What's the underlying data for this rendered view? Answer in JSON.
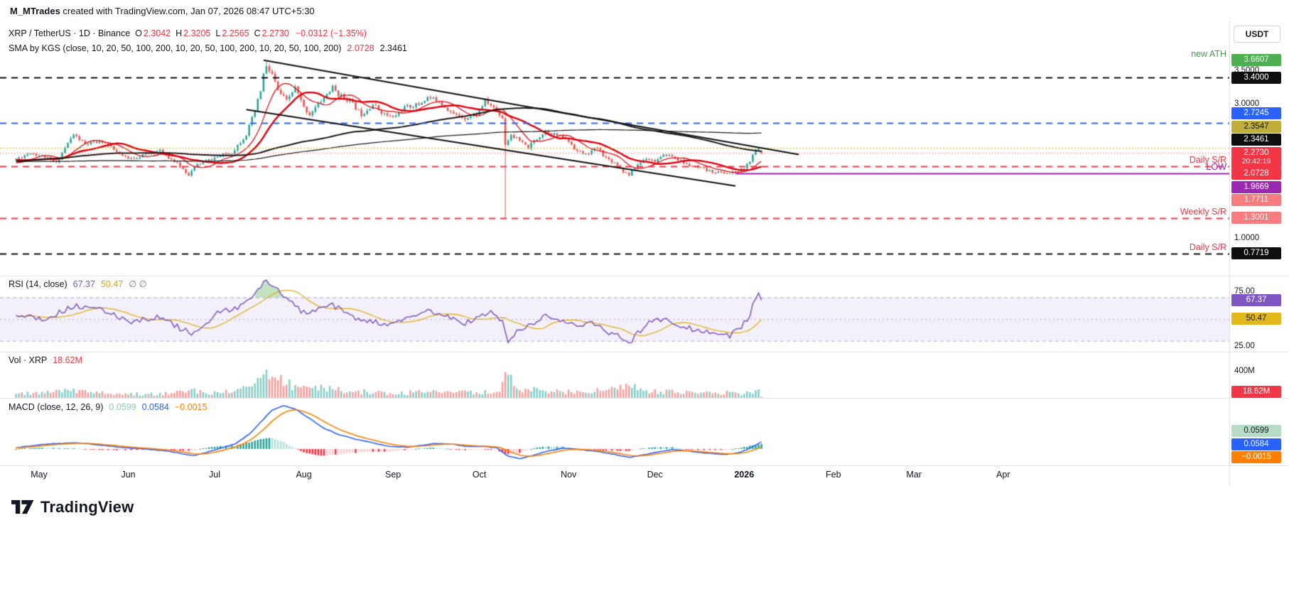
{
  "watermark": {
    "author": "M_MTrades",
    "rest": " created with TradingView.com, Jan 07, 2026 08:47 UTC+5:30"
  },
  "toolbar": {
    "currency_button": "USDT"
  },
  "legend": {
    "symbol_text": "XRP / TetherUS · 1D · Binance",
    "ohlc": [
      {
        "k": "O",
        "v": "2.3042"
      },
      {
        "k": "H",
        "v": "2.3205"
      },
      {
        "k": "L",
        "v": "2.2565"
      },
      {
        "k": "C",
        "v": "2.2730"
      }
    ],
    "change": "−0.0312 (−1.35%)",
    "sma_text": "SMA by KGS (close, 10, 20, 50, 100, 200, 10, 20, 50, 100, 200, 10, 20, 50, 100, 200)",
    "sma_values": [
      {
        "text": "2.0728",
        "color": "#f23645"
      },
      {
        "text": "2.3461",
        "color": "#131722"
      }
    ]
  },
  "pane_legends": {
    "rsi_title": "RSI (14, close)",
    "rsi_values": [
      {
        "text": "67.37",
        "color": "#7e57c2"
      },
      {
        "text": "50.47",
        "color": "#d8a80b"
      }
    ],
    "rsi_empty": "∅  ∅",
    "vol_title": "Vol · XRP",
    "vol_value": {
      "text": "18.62M",
      "color": "#f23645"
    },
    "macd_title": "MACD (close, 12, 26, 9)",
    "macd_values": [
      {
        "text": "0.0599",
        "color": "#8fc9b8"
      },
      {
        "text": "0.0584",
        "color": "#2962ff"
      },
      {
        "text": "−0.0015",
        "color": "#ff8000"
      }
    ]
  },
  "footer": {
    "logo_text": "TradingView"
  },
  "chart_data": {
    "type": "candlestick",
    "symbol": "XRP/USDT",
    "exchange": "Binance",
    "interval": "1D",
    "x_axis": {
      "days_total": 260,
      "months": [
        {
          "label": "May",
          "day": 8
        },
        {
          "label": "Jun",
          "day": 39
        },
        {
          "label": "Jul",
          "day": 69
        },
        {
          "label": "Aug",
          "day": 100
        },
        {
          "label": "Sep",
          "day": 131
        },
        {
          "label": "Oct",
          "day": 161
        },
        {
          "label": "Nov",
          "day": 192
        },
        {
          "label": "Dec",
          "day": 222
        },
        {
          "label": "2026",
          "day": 253,
          "bold": true
        },
        {
          "label": "Feb",
          "day": 284
        },
        {
          "label": "Mar",
          "day": 312
        },
        {
          "label": "Apr",
          "day": 343
        }
      ]
    },
    "price": {
      "ylim": [
        0.44,
        4.24
      ],
      "last": {
        "open": 2.3042,
        "high": 2.3205,
        "low": 2.2565,
        "close": 2.273
      },
      "countdown": "20:42:19",
      "ticks": [
        {
          "v": 3.5,
          "t": "3.5000"
        },
        {
          "v": 3.0,
          "t": "3.0000"
        },
        {
          "v": 1.0,
          "t": "1.0000"
        }
      ],
      "close_keyframes": [
        [
          0,
          2.18
        ],
        [
          5,
          2.28
        ],
        [
          10,
          2.21
        ],
        [
          14,
          2.12
        ],
        [
          17,
          2.35
        ],
        [
          20,
          2.55
        ],
        [
          24,
          2.4
        ],
        [
          30,
          2.45
        ],
        [
          36,
          2.25
        ],
        [
          39,
          2.18
        ],
        [
          45,
          2.25
        ],
        [
          50,
          2.3
        ],
        [
          55,
          2.15
        ],
        [
          60,
          1.95
        ],
        [
          63,
          2.1
        ],
        [
          69,
          2.2
        ],
        [
          75,
          2.28
        ],
        [
          80,
          2.55
        ],
        [
          83,
          2.9
        ],
        [
          85,
          3.2
        ],
        [
          86,
          3.45
        ],
        [
          87,
          3.55
        ],
        [
          89,
          3.45
        ],
        [
          91,
          3.2
        ],
        [
          94,
          3.05
        ],
        [
          97,
          3.25
        ],
        [
          100,
          2.95
        ],
        [
          102,
          2.85
        ],
        [
          106,
          3.05
        ],
        [
          110,
          3.25
        ],
        [
          112,
          3.15
        ],
        [
          116,
          3.05
        ],
        [
          120,
          2.85
        ],
        [
          124,
          3.0
        ],
        [
          128,
          2.85
        ],
        [
          131,
          2.8
        ],
        [
          135,
          2.95
        ],
        [
          140,
          3.0
        ],
        [
          143,
          3.1
        ],
        [
          147,
          3.05
        ],
        [
          152,
          2.85
        ],
        [
          156,
          2.8
        ],
        [
          160,
          2.85
        ],
        [
          163,
          3.05
        ],
        [
          166,
          2.95
        ],
        [
          169,
          2.8
        ],
        [
          170,
          2.4
        ],
        [
          172,
          2.55
        ],
        [
          175,
          2.45
        ],
        [
          178,
          2.35
        ],
        [
          180,
          2.45
        ],
        [
          184,
          2.6
        ],
        [
          187,
          2.55
        ],
        [
          190,
          2.5
        ],
        [
          192,
          2.45
        ],
        [
          195,
          2.3
        ],
        [
          198,
          2.25
        ],
        [
          202,
          2.35
        ],
        [
          205,
          2.2
        ],
        [
          209,
          2.1
        ],
        [
          211,
          2.0
        ],
        [
          213,
          1.95
        ],
        [
          216,
          2.1
        ],
        [
          219,
          2.2
        ],
        [
          222,
          2.15
        ],
        [
          226,
          2.25
        ],
        [
          229,
          2.2
        ],
        [
          233,
          2.1
        ],
        [
          237,
          2.05
        ],
        [
          241,
          2.0
        ],
        [
          245,
          1.98
        ],
        [
          248,
          1.97
        ],
        [
          251,
          2.0
        ],
        [
          253,
          2.05
        ],
        [
          255,
          2.15
        ],
        [
          257,
          2.3
        ],
        [
          258,
          2.35
        ],
        [
          259,
          2.273
        ]
      ],
      "special": {
        "ath_day": 87,
        "ath": 3.6607,
        "crash_day": 170,
        "crash_low": 1.3001,
        "dec_low_day": 248,
        "dec_low": 1.9669
      },
      "levels": [
        {
          "value": 3.6607,
          "label": "3.6607",
          "bg": "#4caf50",
          "fg": "#ffffff",
          "line": "none",
          "annotation": "new ATH",
          "ann_color": "#3fa044"
        },
        {
          "value": 3.4,
          "label": "3.4000",
          "bg": "#0f0f0f",
          "fg": "#ffffff",
          "line": "dashed",
          "line_color": "#0f0f0f",
          "line_width": 2
        },
        {
          "value": 2.7245,
          "label": "2.7245",
          "bg": "#2962ff",
          "fg": "#ffffff",
          "line": "dashed",
          "line_color": "#2962ff",
          "line_width": 2
        },
        {
          "value": 2.3547,
          "label": "2.3547",
          "bg": "#bfae3a",
          "fg": "#131722",
          "line": "dotted",
          "line_color": "#cdbb2e",
          "line_width": 1.5
        },
        {
          "value": 2.3461,
          "label": "2.3461",
          "bg": "#0f0f0f",
          "fg": "#ffffff",
          "line": "none"
        },
        {
          "value": 2.0728,
          "label": "2.0728",
          "bg": "#f23645",
          "fg": "#ffffff",
          "line": "dashed",
          "line_color": "#f23645",
          "line_width": 2,
          "annotation": "Daily S/R",
          "ann_color": "#f23645"
        },
        {
          "value": 1.9669,
          "label": "1.9669",
          "bg": "#9c27b0",
          "fg": "#ffffff",
          "line": "solid",
          "line_color": "#9c27b0",
          "line_width": 2,
          "from_day": 250,
          "annotation": "LOW",
          "ann_color": "#9c27b0"
        },
        {
          "value": 1.7711,
          "label": "1.7711",
          "bg": "#f77c80",
          "fg": "#ffffff",
          "line": "none"
        },
        {
          "value": 1.3001,
          "label": "1.3001",
          "bg": "#f77c80",
          "fg": "#ffffff",
          "line": "dashed",
          "line_color": "#f23645",
          "line_width": 2,
          "annotation": "Weekly S/R",
          "ann_color": "#f23645"
        },
        {
          "value": 0.7719,
          "label": "0.7719",
          "bg": "#0f0f0f",
          "fg": "#ffffff",
          "line": "dashed",
          "line_color": "#0f0f0f",
          "line_width": 2,
          "annotation": "Daily S/R",
          "ann_color": "#f23645"
        }
      ],
      "trendlines": [
        {
          "from": [
            86,
            3.66
          ],
          "to": [
            272,
            2.25
          ]
        },
        {
          "from": [
            80,
            2.92
          ],
          "to": [
            250,
            1.78
          ]
        }
      ],
      "smas": [
        {
          "period": 10,
          "color": "#e4000b",
          "width": 1.2
        },
        {
          "period": 20,
          "color": "#e4000b",
          "width": 2.4
        },
        {
          "period": 100,
          "color": "#1a1a1a",
          "width": 2
        },
        {
          "period": 200,
          "color": "#1a1a1a",
          "width": 1.2
        }
      ],
      "up_color": "#26a69a",
      "down_color": "#ef5350"
    },
    "rsi": {
      "ylim": [
        20,
        90
      ],
      "upper": 70,
      "mid": 50,
      "lower": 30,
      "ticks": [
        {
          "v": 75,
          "t": "75.00"
        },
        {
          "v": 25,
          "t": "25.00"
        }
      ],
      "last": 67.37,
      "ma_last": 50.47,
      "line_color": "#7e57c2",
      "ma_color": "#e0ac10",
      "keyframes": [
        [
          0,
          55
        ],
        [
          10,
          50
        ],
        [
          20,
          62
        ],
        [
          30,
          58
        ],
        [
          40,
          48
        ],
        [
          50,
          52
        ],
        [
          58,
          40
        ],
        [
          62,
          37
        ],
        [
          66,
          45
        ],
        [
          70,
          55
        ],
        [
          78,
          62
        ],
        [
          83,
          72
        ],
        [
          87,
          86
        ],
        [
          90,
          80
        ],
        [
          95,
          66
        ],
        [
          100,
          56
        ],
        [
          105,
          58
        ],
        [
          110,
          63
        ],
        [
          118,
          50
        ],
        [
          125,
          47
        ],
        [
          131,
          45
        ],
        [
          138,
          52
        ],
        [
          143,
          58
        ],
        [
          150,
          52
        ],
        [
          156,
          46
        ],
        [
          161,
          52
        ],
        [
          165,
          56
        ],
        [
          169,
          48
        ],
        [
          171,
          30
        ],
        [
          175,
          40
        ],
        [
          180,
          46
        ],
        [
          184,
          53
        ],
        [
          188,
          50
        ],
        [
          192,
          48
        ],
        [
          196,
          43
        ],
        [
          200,
          46
        ],
        [
          205,
          39
        ],
        [
          209,
          35
        ],
        [
          213,
          28
        ],
        [
          217,
          40
        ],
        [
          220,
          47
        ],
        [
          226,
          51
        ],
        [
          230,
          45
        ],
        [
          235,
          41
        ],
        [
          240,
          38
        ],
        [
          245,
          36
        ],
        [
          248,
          34
        ],
        [
          251,
          41
        ],
        [
          253,
          46
        ],
        [
          255,
          55
        ],
        [
          257,
          70
        ],
        [
          258,
          75
        ],
        [
          259,
          67.37
        ]
      ]
    },
    "volume": {
      "scale_max": 700,
      "unit": "M",
      "ticks": [
        {
          "v": 400,
          "t": "400M"
        }
      ],
      "last": 18.62,
      "last_label": "18.62M",
      "keyframes": [
        [
          0,
          60
        ],
        [
          10,
          70
        ],
        [
          18,
          120
        ],
        [
          25,
          80
        ],
        [
          35,
          65
        ],
        [
          45,
          60
        ],
        [
          55,
          75
        ],
        [
          60,
          115
        ],
        [
          66,
          70
        ],
        [
          72,
          75
        ],
        [
          80,
          170
        ],
        [
          84,
          300
        ],
        [
          87,
          430
        ],
        [
          90,
          310
        ],
        [
          94,
          200
        ],
        [
          98,
          170
        ],
        [
          103,
          150
        ],
        [
          110,
          130
        ],
        [
          116,
          100
        ],
        [
          122,
          90
        ],
        [
          130,
          75
        ],
        [
          138,
          80
        ],
        [
          144,
          90
        ],
        [
          152,
          75
        ],
        [
          160,
          85
        ],
        [
          168,
          95
        ],
        [
          170,
          390
        ],
        [
          173,
          180
        ],
        [
          178,
          130
        ],
        [
          184,
          100
        ],
        [
          190,
          90
        ],
        [
          196,
          95
        ],
        [
          203,
          105
        ],
        [
          209,
          130
        ],
        [
          213,
          185
        ],
        [
          218,
          110
        ],
        [
          224,
          95
        ],
        [
          230,
          85
        ],
        [
          236,
          75
        ],
        [
          242,
          70
        ],
        [
          248,
          90
        ],
        [
          251,
          70
        ],
        [
          253,
          60
        ],
        [
          255,
          85
        ],
        [
          257,
          115
        ],
        [
          258,
          130
        ],
        [
          259,
          18.62
        ]
      ]
    },
    "macd": {
      "ylim": [
        -0.135,
        0.42
      ],
      "hist_last": 0.0599,
      "macd_last": 0.0584,
      "signal_last": -0.0015,
      "macd_color": "#2962ff",
      "signal_color": "#ff8000",
      "keyframes": [
        [
          0,
          0.01
        ],
        [
          8,
          0.035
        ],
        [
          15,
          0.045
        ],
        [
          22,
          0.05
        ],
        [
          30,
          0.03
        ],
        [
          38,
          0.01
        ],
        [
          45,
          0.0
        ],
        [
          52,
          -0.015
        ],
        [
          58,
          -0.04
        ],
        [
          62,
          -0.055
        ],
        [
          66,
          -0.03
        ],
        [
          70,
          0.0
        ],
        [
          76,
          0.04
        ],
        [
          81,
          0.12
        ],
        [
          85,
          0.22
        ],
        [
          89,
          0.32
        ],
        [
          93,
          0.355
        ],
        [
          97,
          0.33
        ],
        [
          102,
          0.25
        ],
        [
          107,
          0.17
        ],
        [
          112,
          0.12
        ],
        [
          118,
          0.08
        ],
        [
          124,
          0.05
        ],
        [
          130,
          0.02
        ],
        [
          136,
          0.015
        ],
        [
          141,
          0.03
        ],
        [
          146,
          0.045
        ],
        [
          151,
          0.04
        ],
        [
          157,
          0.02
        ],
        [
          162,
          0.02
        ],
        [
          167,
          0.01
        ],
        [
          171,
          -0.06
        ],
        [
          175,
          -0.08
        ],
        [
          180,
          -0.05
        ],
        [
          185,
          -0.015
        ],
        [
          190,
          0.005
        ],
        [
          196,
          -0.005
        ],
        [
          202,
          -0.02
        ],
        [
          208,
          -0.045
        ],
        [
          213,
          -0.07
        ],
        [
          218,
          -0.05
        ],
        [
          223,
          -0.025
        ],
        [
          228,
          -0.005
        ],
        [
          233,
          -0.015
        ],
        [
          238,
          -0.03
        ],
        [
          243,
          -0.04
        ],
        [
          247,
          -0.045
        ],
        [
          251,
          -0.03
        ],
        [
          254,
          -0.005
        ],
        [
          256,
          0.02
        ],
        [
          258,
          0.045
        ],
        [
          259,
          0.0584
        ]
      ]
    }
  }
}
